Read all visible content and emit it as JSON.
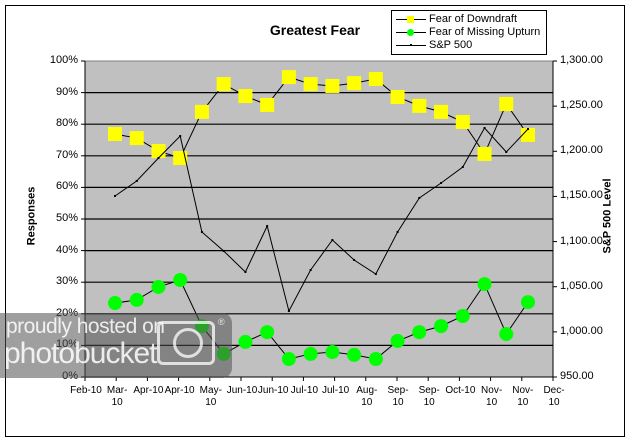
{
  "chart_data": {
    "type": "line",
    "title": "Greatest Fear",
    "xlabel": "",
    "ylabel": "Responses",
    "y2label": "S&P 500 Level",
    "ylim": [
      0,
      100
    ],
    "y2lim": [
      950,
      1300
    ],
    "y_ticks": [
      "0%",
      "10%",
      "20%",
      "30%",
      "40%",
      "50%",
      "60%",
      "70%",
      "80%",
      "90%",
      "100%"
    ],
    "y2_ticks": [
      "950.00",
      "1,000.00",
      "1,050.00",
      "1,100.00",
      "1,150.00",
      "1,200.00",
      "1,250.00",
      "1,300.00"
    ],
    "x_tick_labels": [
      "Feb-10",
      "Mar-10",
      "Apr-10",
      "Apr-10",
      "May-10",
      "Jun-10",
      "Jun-10",
      "Jul-10",
      "Jul-10",
      "Aug-10",
      "Sep-10",
      "Sep-10",
      "Oct-10",
      "Nov-10",
      "Nov-10",
      "Dec-10"
    ],
    "grid": true,
    "legend_position": "top-right",
    "plot_background": "#c0c0c0",
    "x_count": 20,
    "series": [
      {
        "name": "Fear of Downdraft",
        "axis": "left",
        "marker": "square",
        "color": "#ffff00",
        "values": [
          76.9,
          75.6,
          71.5,
          69.3,
          83.9,
          92.7,
          88.9,
          86.1,
          94.9,
          92.7,
          92.1,
          93.0,
          94.3,
          88.6,
          85.8,
          83.9,
          80.7,
          70.6,
          86.4,
          76.6
        ]
      },
      {
        "name": "Fear of Missing Upturn",
        "axis": "left",
        "marker": "circle",
        "color": "#00ff00",
        "values": [
          23.4,
          24.4,
          28.5,
          30.7,
          16.1,
          7.3,
          11.1,
          14.2,
          5.7,
          7.3,
          7.9,
          7.0,
          5.7,
          11.4,
          14.2,
          16.1,
          19.3,
          29.4,
          13.6,
          23.7
        ]
      },
      {
        "name": "S&P 500",
        "axis": "right",
        "marker": "dot",
        "color": "#000000",
        "values": [
          1150.5,
          1167.1,
          1192.6,
          1216.9,
          1110.6,
          1089.6,
          1066.3,
          1117.2,
          1023.1,
          1068.5,
          1101.7,
          1079.6,
          1064.1,
          1110.6,
          1148.3,
          1164.9,
          1182.6,
          1225.8,
          1199.2,
          1224.7
        ]
      }
    ]
  },
  "watermark": {
    "line1": "proudly hosted on",
    "line2": "photobucket",
    "reg": "®"
  }
}
